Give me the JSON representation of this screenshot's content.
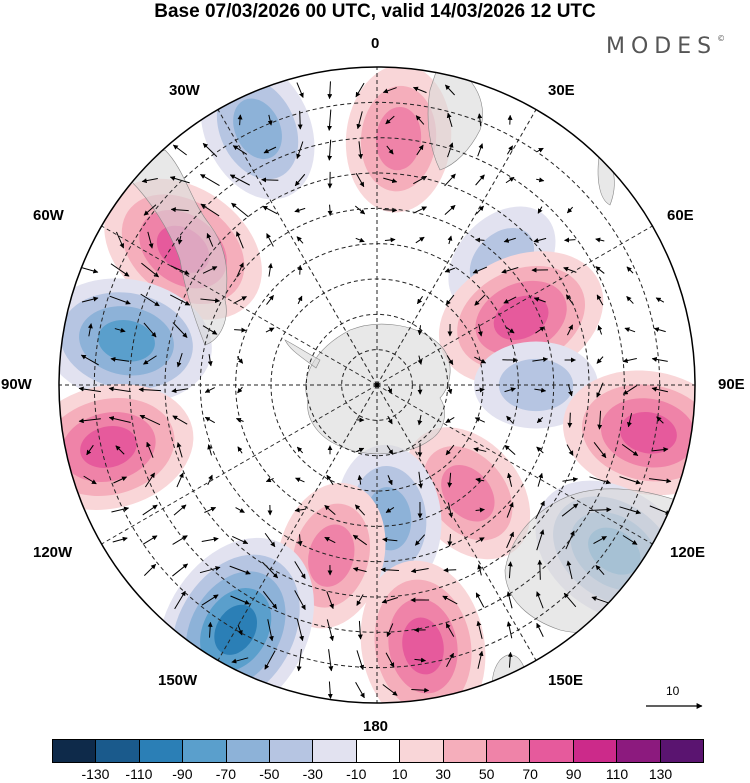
{
  "title": "Base 07/03/2026 00 UTC, valid 14/03/2026 12 UTC",
  "logo": "MODES",
  "logo_mark": "©",
  "lon_labels": {
    "l0": "0",
    "l30e": "30E",
    "l60e": "60E",
    "l90e": "90E",
    "l120e": "120E",
    "l150e": "150E",
    "l180": "180",
    "l150w": "150W",
    "l120w": "120W",
    "l90w": "90W",
    "l60w": "60W",
    "l30w": "30W"
  },
  "reference_vector": "10",
  "colorbar": {
    "colors": [
      "#0e2a4a",
      "#1a5a8c",
      "#2b7fb6",
      "#5a9fcc",
      "#8db2d8",
      "#b6c5e2",
      "#e2e2f0",
      "#ffffff",
      "#f9d6d8",
      "#f5aebb",
      "#ef83a8",
      "#e65a9c",
      "#cc2a8a",
      "#8c1a7e",
      "#5a1470"
    ],
    "labels": [
      "-130",
      "-110",
      "-90",
      "-70",
      "-50",
      "-30",
      "-10",
      "10",
      "30",
      "50",
      "70",
      "90",
      "110",
      "130"
    ]
  },
  "anomalies": [
    {
      "lon": 5,
      "colat": 70,
      "value": 50
    },
    {
      "lon": -25,
      "colat": 80,
      "value": -50
    },
    {
      "lon": -55,
      "colat": 67,
      "value": 70
    },
    {
      "lon": 45,
      "colat": 50,
      "value": -30
    },
    {
      "lon": 65,
      "colat": 45,
      "value": 70
    },
    {
      "lon": -80,
      "colat": 72,
      "value": -70
    },
    {
      "lon": 90,
      "colat": 45,
      "value": -30
    },
    {
      "lon": 100,
      "colat": 78,
      "value": 70
    },
    {
      "lon": -103,
      "colat": 78,
      "value": 70
    },
    {
      "lon": 140,
      "colat": 40,
      "value": 50
    },
    {
      "lon": 125,
      "colat": 82,
      "value": -70
    },
    {
      "lon": 175,
      "colat": 38,
      "value": -50
    },
    {
      "lon": -165,
      "colat": 50,
      "value": 50
    },
    {
      "lon": 170,
      "colat": 75,
      "value": 70
    },
    {
      "lon": -150,
      "colat": 80,
      "value": -90
    }
  ]
}
